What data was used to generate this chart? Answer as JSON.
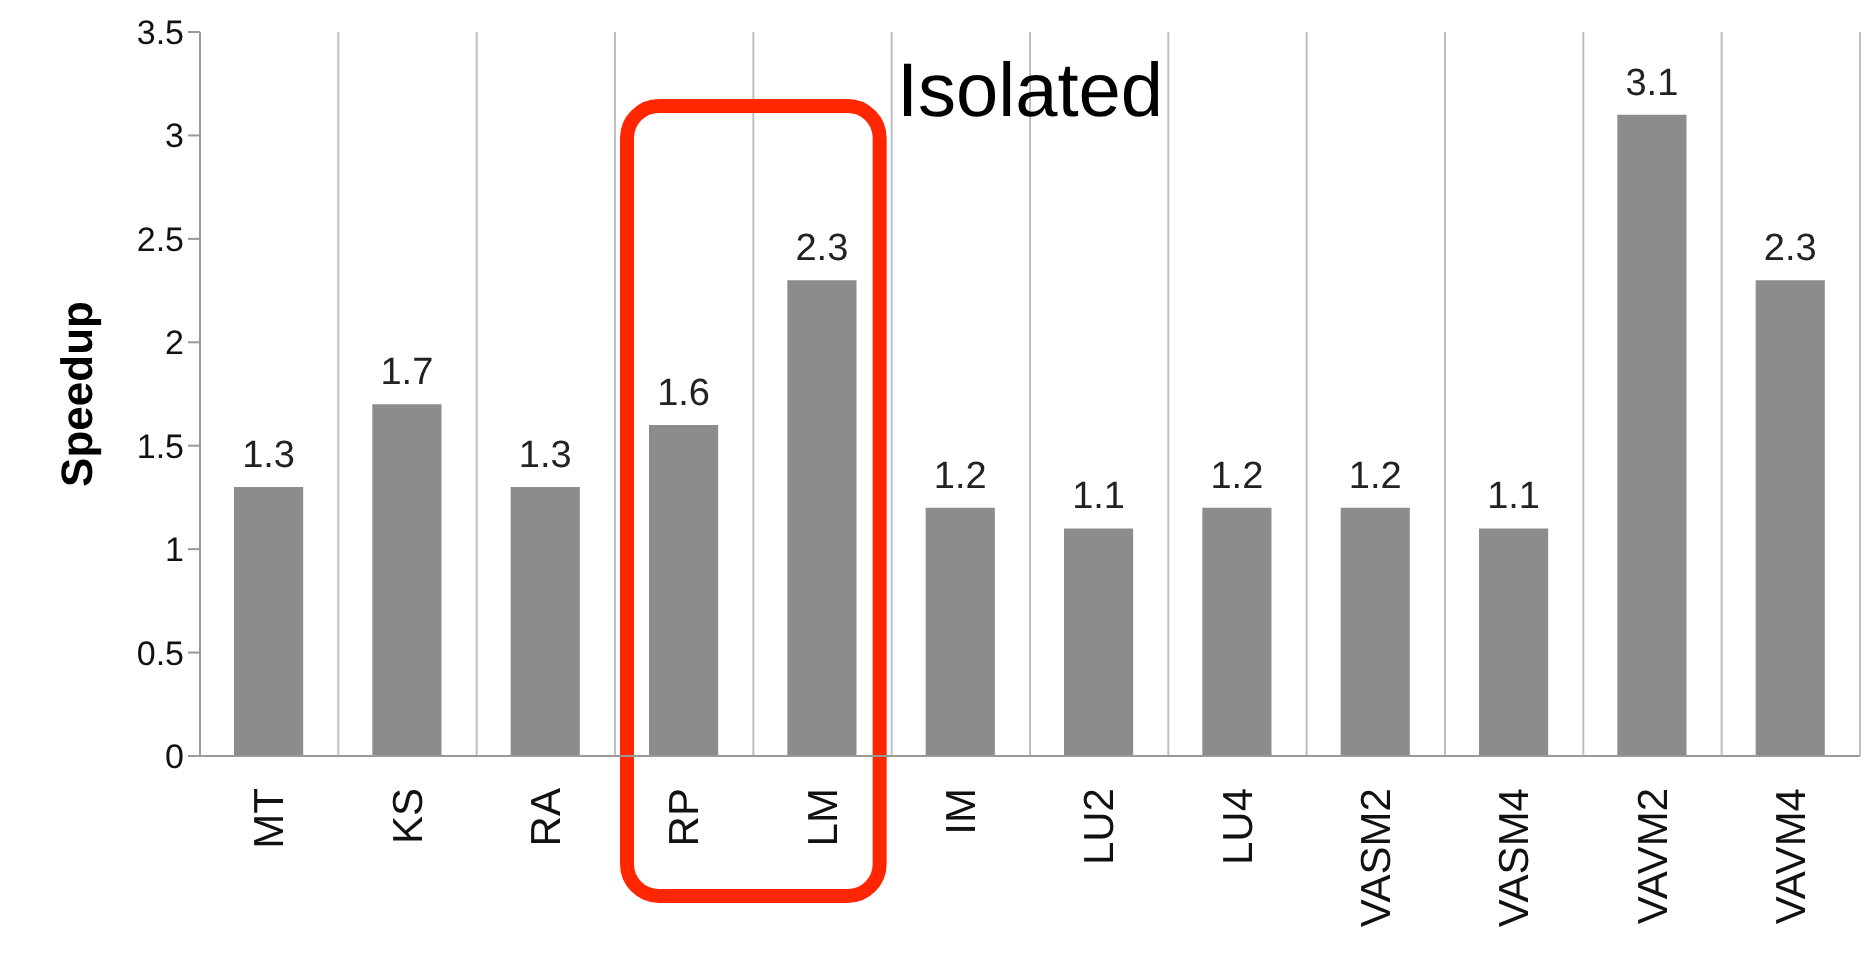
{
  "chart_data": {
    "type": "bar",
    "title": "Isolated",
    "ylabel": "Speedup",
    "categories": [
      "MT",
      "KS",
      "RA",
      "RP",
      "LM",
      "IM",
      "LU2",
      "LU4",
      "VASM2",
      "VASM4",
      "VAVM2",
      "VAVM4"
    ],
    "values": [
      1.3,
      1.7,
      1.3,
      1.6,
      2.3,
      1.2,
      1.1,
      1.2,
      1.2,
      1.1,
      3.1,
      2.3
    ],
    "color": "#8c8c8c",
    "ylim": [
      0,
      3.5
    ],
    "yticks": [
      0,
      0.5,
      1,
      1.5,
      2,
      2.5,
      3,
      3.5
    ],
    "grid": "x",
    "data_labels": true
  }
}
